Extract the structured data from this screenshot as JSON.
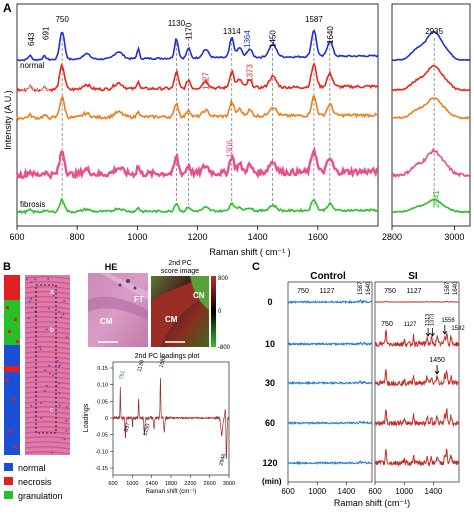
{
  "panels": {
    "a": {
      "letter": "A",
      "ylabel": "Intensity (A.U.)",
      "xlabel": "Raman shift ( cm⁻¹ )",
      "top_peaks": [
        "643",
        "691",
        "750",
        "1130",
        "1170",
        "1314",
        "1364",
        "1450",
        "1587",
        "1640",
        "2935"
      ],
      "inline_peaks": [
        "1227",
        "1373",
        "1306",
        "2941"
      ],
      "series": [
        {
          "name": "normal",
          "color": "#1f2fd6"
        },
        {
          "name": "necrosis",
          "sub": "[day 2]",
          "color": "#e8271b"
        },
        {
          "name": "necrosis",
          "sub": "[day 5]",
          "color": "#f07d1a"
        },
        {
          "name": "granulation",
          "color": "#e8508a"
        },
        {
          "name": "fibrosis",
          "color": "#29c02c"
        }
      ],
      "xticks_left": [
        "600",
        "800",
        "1000",
        "1200",
        "1400",
        "1600"
      ],
      "xticks_right": [
        "2800",
        "3000"
      ]
    },
    "b": {
      "letter": "B",
      "he_label": "HE",
      "pc_title_1": "2nd PC",
      "pc_title_2": "score image",
      "ft_label": "FT",
      "cm_label": "CM",
      "cm2_label": "CM",
      "cn_label": "CN",
      "colorbar_ticks": [
        "800",
        "0",
        "-800"
      ],
      "section_letters": [
        "a",
        "b",
        "c"
      ],
      "loadings_title": "2nd PC loadings plot",
      "loadings_ylabel": "Loadings",
      "loadings_xlabel": "Raman shift (cm⁻¹)",
      "loadings_yticks": [
        "0.15",
        "0.10",
        "0.05",
        "0",
        "-0.05",
        "-0.10",
        "-0.15"
      ],
      "loadings_xticks": [
        "600",
        "1000",
        "1400",
        "1800",
        "2200",
        "2600",
        "3000"
      ],
      "loadings_peaks": [
        "751",
        "1130",
        "1582",
        "857",
        "1250",
        "2946"
      ],
      "legend": [
        {
          "label": "normal",
          "color": "#1a4fd8"
        },
        {
          "label": "necrosis",
          "color": "#e02020"
        },
        {
          "label": "granulation",
          "color": "#28c028"
        }
      ]
    },
    "c": {
      "letter": "C",
      "control_title": "Control",
      "si_title": "SI",
      "row_labels": [
        "0",
        "10",
        "30",
        "60",
        "120"
      ],
      "row_unit": "(min)",
      "xlabel": "Raman shift (cm⁻¹)",
      "xticks": [
        "600",
        "1000",
        "1400"
      ],
      "control_peaks": [
        "750",
        "1127",
        "1587",
        "1640"
      ],
      "si_peaks_top": [
        "750",
        "1127",
        "1587",
        "1640"
      ],
      "si_peaks_row10": [
        "750",
        "1127",
        "1313",
        "1373",
        "1556",
        "1582"
      ],
      "si_peak_row30": "1450"
    }
  },
  "caption": "                                                                                              "
}
